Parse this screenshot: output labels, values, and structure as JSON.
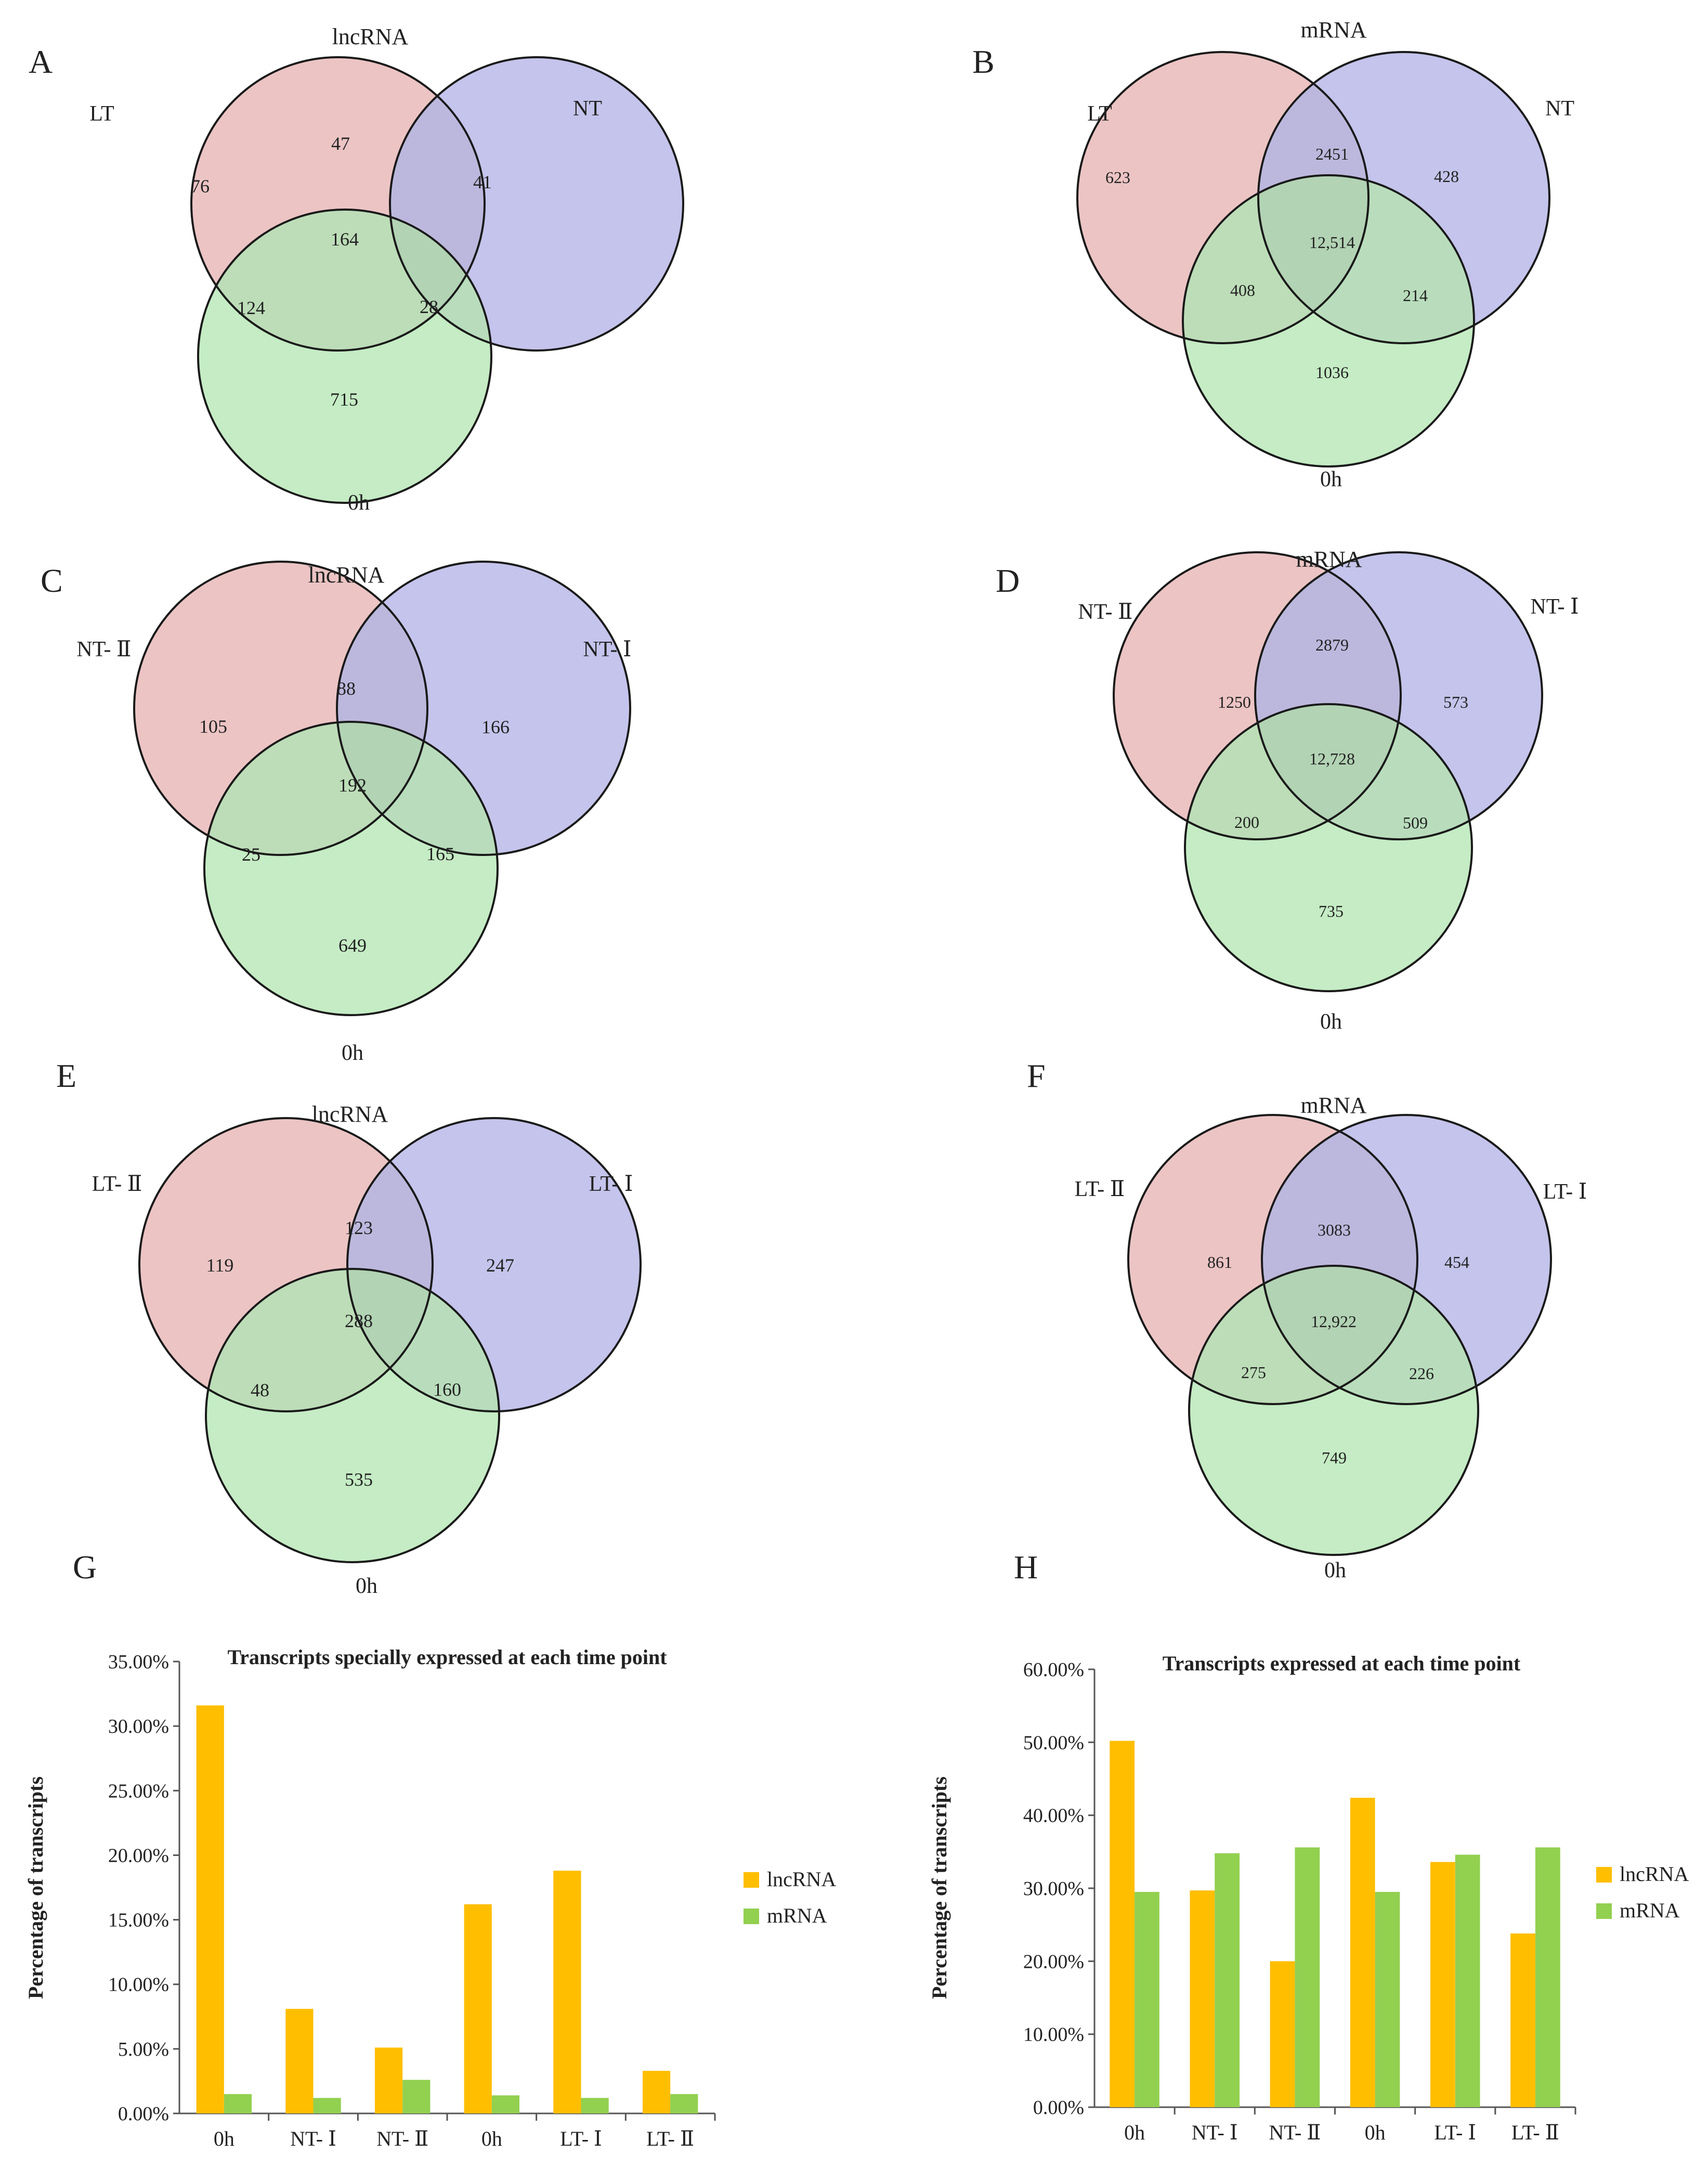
{
  "panels": [
    {
      "letter": "A",
      "title": "lncRNA",
      "label_left": "LT",
      "label_right": "NT",
      "label_bottom": "0h",
      "regions": {
        "left_only": "76",
        "right_only": "41",
        "bottom_only": "715",
        "left_right": "47",
        "left_bottom": "124",
        "right_bottom": "28",
        "center": "164"
      }
    },
    {
      "letter": "B",
      "title": "mRNA",
      "label_left": "LT",
      "label_right": "NT",
      "label_bottom": "0h",
      "regions": {
        "left_only": "623",
        "right_only": "428",
        "bottom_only": "1036",
        "left_right": "2451",
        "left_bottom": "408",
        "right_bottom": "214",
        "center": "12,514"
      }
    },
    {
      "letter": "C",
      "title": "lncRNA",
      "label_left": "NT- Ⅱ",
      "label_right": "NT- Ⅰ",
      "label_bottom": "0h",
      "regions": {
        "left_only": "105",
        "right_only": "166",
        "bottom_only": "649",
        "left_right": "88",
        "left_bottom": "25",
        "right_bottom": "165",
        "center": "192"
      }
    },
    {
      "letter": "D",
      "title": "mRNA",
      "label_left": "NT- Ⅱ",
      "label_right": "NT- Ⅰ",
      "label_bottom": "0h",
      "regions": {
        "left_only": "1250",
        "right_only": "573",
        "bottom_only": "735",
        "left_right": "2879",
        "left_bottom": "200",
        "right_bottom": "509",
        "center": "12,728"
      }
    },
    {
      "letter": "E",
      "title": "lncRNA",
      "label_left": "LT- Ⅱ",
      "label_right": "LT- Ⅰ",
      "label_bottom": "0h",
      "regions": {
        "left_only": "119",
        "right_only": "247",
        "bottom_only": "535",
        "left_right": "123",
        "left_bottom": "48",
        "right_bottom": "160",
        "center": "288"
      }
    },
    {
      "letter": "F",
      "title": "mRNA",
      "label_left": "LT- Ⅱ",
      "label_right": "LT- Ⅰ",
      "label_bottom": "0h",
      "regions": {
        "left_only": "861",
        "right_only": "454",
        "bottom_only": "749",
        "left_right": "3083",
        "left_bottom": "275",
        "right_bottom": "226",
        "center": "12,922"
      }
    }
  ],
  "colors": {
    "circle_left": "#f7c6c6",
    "circle_right": "#c6c6f7",
    "circle_bottom": "#c9f7c6",
    "lncRNA": "#ffbe00",
    "mRNA": "#92d050"
  },
  "chart_data": [
    {
      "letter": "G",
      "type": "bar",
      "title": "Transcripts specially expressed at each time point",
      "xlabel": "",
      "ylabel": "Percentage of transcripts",
      "categories": [
        "0h",
        "NT- Ⅰ",
        "NT- Ⅱ",
        "0h",
        "LT- Ⅰ",
        "LT- Ⅱ"
      ],
      "series": [
        {
          "name": "lncRNA",
          "values": [
            31.6,
            8.1,
            5.1,
            16.2,
            18.8,
            3.3
          ]
        },
        {
          "name": "mRNA",
          "values": [
            1.5,
            1.2,
            2.6,
            1.4,
            1.2,
            1.5
          ]
        }
      ],
      "ylim": [
        0,
        35
      ],
      "ytick_labels": [
        "0.00%",
        "5.00%",
        "10.00%",
        "15.00%",
        "20.00%",
        "25.00%",
        "30.00%",
        "35.00%"
      ],
      "legend": "right",
      "grid": false
    },
    {
      "letter": "H",
      "type": "bar",
      "title": "Transcripts  expressed at each time point",
      "xlabel": "",
      "ylabel": "Percentage of transcripts",
      "categories": [
        "0h",
        "NT- Ⅰ",
        "NT- Ⅱ",
        "0h",
        "LT- Ⅰ",
        "LT- Ⅱ"
      ],
      "series": [
        {
          "name": "lncRNA",
          "values": [
            50.2,
            29.7,
            20.0,
            42.4,
            33.6,
            23.8
          ]
        },
        {
          "name": "mRNA",
          "values": [
            29.5,
            34.8,
            35.6,
            29.5,
            34.6,
            35.6
          ]
        }
      ],
      "ylim": [
        0,
        60
      ],
      "ytick_labels": [
        "0.00%",
        "10.00%",
        "20.00%",
        "30.00%",
        "40.00%",
        "50.00%",
        "60.00%"
      ],
      "legend": "right",
      "grid": false
    }
  ]
}
